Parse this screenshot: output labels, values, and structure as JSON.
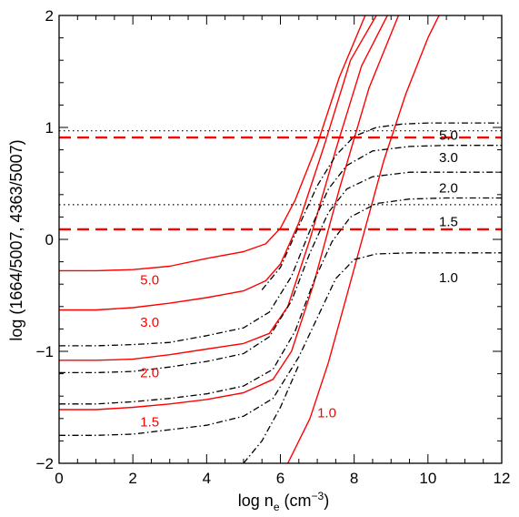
{
  "chart_data": {
    "type": "line",
    "xlabel": {
      "main": "log n",
      "sub": "e",
      "unit_open": " (cm",
      "unit_sup": "−3",
      "unit_close": ")"
    },
    "ylabel": "log (1664/5007, 4363/5007)",
    "xlim": [
      0,
      12
    ],
    "ylim": [
      -2,
      2
    ],
    "x_ticks": [
      0,
      2,
      4,
      6,
      8,
      10,
      12
    ],
    "x_tick_labels": [
      "0",
      "2",
      "4",
      "6",
      "8",
      "10",
      "12"
    ],
    "y_ticks": [
      -2,
      -1,
      0,
      1,
      2
    ],
    "y_tick_labels": [
      "−2",
      "−1",
      "0",
      "1",
      "2"
    ],
    "grid": false,
    "colors": {
      "red": "#ff0000",
      "black": "#000000"
    },
    "series": [
      {
        "group": "red-solid",
        "label": "5.0",
        "color": "#ff0000",
        "dash": "solid",
        "label_at": [
          2.2,
          -0.36
        ],
        "points": [
          [
            0,
            -0.28
          ],
          [
            1,
            -0.28
          ],
          [
            2,
            -0.27
          ],
          [
            3,
            -0.24
          ],
          [
            4,
            -0.17
          ],
          [
            5,
            -0.11
          ],
          [
            5.6,
            -0.04
          ],
          [
            6.0,
            0.1
          ],
          [
            6.4,
            0.35
          ],
          [
            7.0,
            0.85
          ],
          [
            7.6,
            1.45
          ],
          [
            8.3,
            2.0
          ]
        ]
      },
      {
        "group": "red-solid",
        "label": "3.0",
        "color": "#ff0000",
        "dash": "solid",
        "label_at": [
          2.2,
          -0.74
        ],
        "points": [
          [
            0,
            -0.63
          ],
          [
            1,
            -0.63
          ],
          [
            2,
            -0.61
          ],
          [
            3,
            -0.57
          ],
          [
            4,
            -0.52
          ],
          [
            5,
            -0.46
          ],
          [
            5.6,
            -0.37
          ],
          [
            6.0,
            -0.22
          ],
          [
            6.5,
            0.15
          ],
          [
            7.2,
            0.85
          ],
          [
            7.9,
            1.6
          ],
          [
            8.6,
            2.0
          ]
        ]
      },
      {
        "group": "red-solid",
        "label": "2.0",
        "color": "#ff0000",
        "dash": "solid",
        "label_at": [
          2.2,
          -1.19
        ],
        "points": [
          [
            0,
            -1.08
          ],
          [
            1,
            -1.08
          ],
          [
            2,
            -1.07
          ],
          [
            3,
            -1.03
          ],
          [
            4,
            -0.98
          ],
          [
            5,
            -0.93
          ],
          [
            5.7,
            -0.84
          ],
          [
            6.2,
            -0.6
          ],
          [
            6.8,
            0.0
          ],
          [
            7.5,
            0.8
          ],
          [
            8.2,
            1.55
          ],
          [
            8.9,
            2.0
          ]
        ]
      },
      {
        "group": "red-solid",
        "label": "1.5",
        "color": "#ff0000",
        "dash": "solid",
        "label_at": [
          2.2,
          -1.63
        ],
        "points": [
          [
            0,
            -1.52
          ],
          [
            1,
            -1.52
          ],
          [
            2,
            -1.5
          ],
          [
            3,
            -1.47
          ],
          [
            4,
            -1.43
          ],
          [
            5,
            -1.37
          ],
          [
            5.8,
            -1.25
          ],
          [
            6.3,
            -1.0
          ],
          [
            6.9,
            -0.4
          ],
          [
            7.6,
            0.45
          ],
          [
            8.4,
            1.35
          ],
          [
            9.2,
            2.0
          ]
        ]
      },
      {
        "group": "red-solid",
        "label": "1.0",
        "color": "#ff0000",
        "dash": "solid",
        "label_at": [
          7.0,
          -1.55
        ],
        "points": [
          [
            6.2,
            -2.0
          ],
          [
            6.8,
            -1.6
          ],
          [
            7.3,
            -1.1
          ],
          [
            7.8,
            -0.5
          ],
          [
            8.3,
            0.1
          ],
          [
            8.8,
            0.7
          ],
          [
            9.4,
            1.3
          ],
          [
            10.0,
            1.8
          ],
          [
            10.3,
            2.0
          ]
        ]
      },
      {
        "group": "black-dashdot",
        "label": "5.0",
        "color": "#000000",
        "dash": "dashdot",
        "label_at": [
          10.3,
          0.93
        ],
        "points": [
          [
            5.5,
            -0.45
          ],
          [
            6.0,
            -0.25
          ],
          [
            6.5,
            0.12
          ],
          [
            7.0,
            0.48
          ],
          [
            7.5,
            0.75
          ],
          [
            8.0,
            0.92
          ],
          [
            8.6,
            1.0
          ],
          [
            9.3,
            1.03
          ],
          [
            10,
            1.04
          ],
          [
            11,
            1.04
          ],
          [
            12,
            1.04
          ]
        ]
      },
      {
        "group": "black-dashdot",
        "label": "3.0",
        "color": "#000000",
        "dash": "dashdot",
        "label_at": [
          10.3,
          0.73
        ],
        "points": [
          [
            0,
            -0.95
          ],
          [
            1,
            -0.95
          ],
          [
            2,
            -0.94
          ],
          [
            3,
            -0.92
          ],
          [
            4,
            -0.86
          ],
          [
            5,
            -0.79
          ],
          [
            5.7,
            -0.65
          ],
          [
            6.3,
            -0.33
          ],
          [
            6.8,
            0.08
          ],
          [
            7.3,
            0.45
          ],
          [
            7.8,
            0.66
          ],
          [
            8.5,
            0.79
          ],
          [
            9.5,
            0.83
          ],
          [
            10.5,
            0.84
          ],
          [
            12,
            0.84
          ]
        ]
      },
      {
        "group": "black-dashdot",
        "label": "2.0",
        "color": "#000000",
        "dash": "dashdot",
        "label_at": [
          10.3,
          0.46
        ],
        "points": [
          [
            0,
            -1.19
          ],
          [
            1,
            -1.19
          ],
          [
            2,
            -1.18
          ],
          [
            3,
            -1.14
          ],
          [
            4,
            -1.09
          ],
          [
            5,
            -1.02
          ],
          [
            5.7,
            -0.87
          ],
          [
            6.3,
            -0.55
          ],
          [
            6.8,
            -0.12
          ],
          [
            7.3,
            0.24
          ],
          [
            7.8,
            0.45
          ],
          [
            8.5,
            0.56
          ],
          [
            9.5,
            0.6
          ],
          [
            10.5,
            0.6
          ],
          [
            12,
            0.6
          ]
        ]
      },
      {
        "group": "black-dashdot",
        "label": "1.5",
        "color": "#000000",
        "dash": "dashdot",
        "label_at": [
          10.3,
          0.16
        ],
        "points": [
          [
            0,
            -1.47
          ],
          [
            1,
            -1.47
          ],
          [
            2,
            -1.45
          ],
          [
            3,
            -1.42
          ],
          [
            4,
            -1.38
          ],
          [
            5,
            -1.31
          ],
          [
            5.8,
            -1.16
          ],
          [
            6.4,
            -0.82
          ],
          [
            6.9,
            -0.38
          ],
          [
            7.4,
            -0.02
          ],
          [
            7.9,
            0.2
          ],
          [
            8.6,
            0.32
          ],
          [
            9.5,
            0.36
          ],
          [
            10.5,
            0.37
          ],
          [
            12,
            0.37
          ]
        ]
      },
      {
        "group": "black-dashdot",
        "label": "1.0",
        "color": "#000000",
        "dash": "dashdot",
        "label_at": [
          10.3,
          -0.34
        ],
        "points": [
          [
            0,
            -1.75
          ],
          [
            1,
            -1.75
          ],
          [
            2,
            -1.74
          ],
          [
            3,
            -1.7
          ],
          [
            4,
            -1.66
          ],
          [
            5,
            -1.58
          ],
          [
            5.8,
            -1.42
          ],
          [
            6.5,
            -1.05
          ],
          [
            7.0,
            -0.7
          ],
          [
            7.5,
            -0.35
          ],
          [
            8.0,
            -0.18
          ],
          [
            8.6,
            -0.13
          ],
          [
            9.5,
            -0.12
          ],
          [
            12,
            -0.12
          ]
        ]
      },
      {
        "group": "black-dashdot",
        "label": "",
        "color": "#000000",
        "dash": "dashdot",
        "label_at": null,
        "points": [
          [
            5.0,
            -2.0
          ],
          [
            5.5,
            -1.8
          ],
          [
            6.0,
            -1.5
          ],
          [
            6.5,
            -1.12
          ]
        ]
      }
    ],
    "horizontal_lines": [
      {
        "y": 0.97,
        "style": "dotted",
        "color": "#000000"
      },
      {
        "y": 0.91,
        "style": "dashed",
        "color": "#ff0000"
      },
      {
        "y": 0.31,
        "style": "dotted",
        "color": "#000000"
      },
      {
        "y": 0.09,
        "style": "dashed",
        "color": "#ff0000"
      }
    ]
  }
}
